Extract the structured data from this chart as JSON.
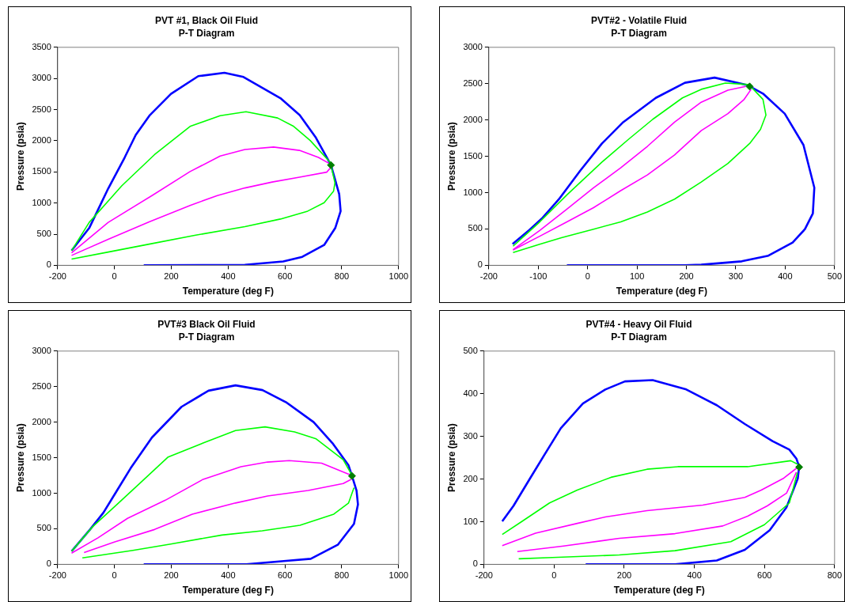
{
  "chart_data": [
    {
      "type": "line",
      "title": "PVT #1, Black Oil Fluid",
      "subtitle": "P-T Diagram",
      "xlabel": "Temperature (deg F)",
      "ylabel": "Pressure (psia)",
      "xlim": [
        -200,
        1000
      ],
      "ylim": [
        0,
        3500
      ],
      "xticks": [
        -200,
        0,
        200,
        400,
        600,
        800,
        1000
      ],
      "yticks": [
        0,
        500,
        1000,
        1500,
        2000,
        2500,
        3000,
        3500
      ],
      "grid": false,
      "legend": false,
      "marker": "none",
      "series": [
        {
          "color": "#0000ff",
          "x": [
            -151,
            -89,
            -22,
            36,
            75,
            123,
            199,
            295,
            387,
            454,
            584,
            652,
            709,
            762,
            791,
            796,
            777,
            738,
            661,
            594,
            459,
            103
          ],
          "values": [
            236,
            598,
            1233,
            1732,
            2094,
            2403,
            2752,
            3037,
            3092,
            3024,
            2684,
            2412,
            2049,
            1609,
            1142,
            870,
            598,
            326,
            136,
            63,
            9,
            0
          ]
        },
        {
          "color": "#00ff00",
          "x": [
            -151,
            -89,
            26,
            141,
            266,
            372,
            463,
            574,
            631,
            689,
            762
          ],
          "values": [
            236,
            689,
            1278,
            1777,
            2230,
            2403,
            2466,
            2366,
            2230,
            2004,
            1641
          ]
        },
        {
          "color": "#ff00ff",
          "x": [
            -151,
            -22,
            132,
            266,
            372,
            459,
            560,
            651,
            718,
            757
          ],
          "values": [
            200,
            689,
            1120,
            1505,
            1754,
            1859,
            1899,
            1845,
            1732,
            1632
          ]
        },
        {
          "color": "#ff00ff",
          "x": [
            762,
            747,
            651,
            555,
            459,
            362,
            266,
            122,
            -22,
            -151
          ],
          "values": [
            1573,
            1496,
            1414,
            1337,
            1242,
            1120,
            961,
            698,
            417,
            159
          ]
        },
        {
          "color": "#00ff00",
          "x": [
            762,
            776,
            771,
            738,
            680,
            584,
            459,
            286,
            122,
            -22,
            -151
          ],
          "values": [
            1609,
            1324,
            1188,
            1006,
            870,
            743,
            621,
            485,
            340,
            213,
            100
          ]
        },
        {
          "type": "scatter",
          "marker": "diamond",
          "color": "#008000",
          "x": [
            762
          ],
          "values": [
            1609
          ]
        }
      ]
    },
    {
      "type": "line",
      "title": "PVT#2 - Volatile Fluid",
      "subtitle": "P-T Diagram",
      "xlabel": "Temperature (deg F)",
      "ylabel": "Pressure (psia)",
      "xlim": [
        -200,
        500
      ],
      "ylim": [
        0,
        3000
      ],
      "xticks": [
        -200,
        -100,
        0,
        100,
        200,
        300,
        400,
        500
      ],
      "yticks": [
        0,
        500,
        1000,
        1500,
        2000,
        2500,
        3000
      ],
      "grid": false,
      "legend": false,
      "marker": "none",
      "series": [
        {
          "color": "#0000ff",
          "x": [
            -152,
            -118,
            -91,
            -58,
            -15,
            29,
            72,
            138,
            197,
            257,
            323,
            355,
            399,
            437,
            459,
            456,
            440,
            415,
            366,
            312,
            230,
            197,
            -42
          ],
          "values": [
            294,
            487,
            655,
            911,
            1303,
            1676,
            1970,
            2304,
            2512,
            2583,
            2481,
            2363,
            2088,
            1656,
            1068,
            714,
            498,
            314,
            133,
            55,
            8,
            0,
            0
          ]
        },
        {
          "color": "#00ff00",
          "x": [
            -151,
            -97,
            -42,
            29,
            83,
            132,
            192,
            230,
            279,
            325
          ],
          "values": [
            263,
            597,
            969,
            1421,
            1735,
            2010,
            2304,
            2422,
            2508,
            2488
          ]
        },
        {
          "color": "#ff00ff",
          "x": [
            -151,
            -97,
            -42,
            12,
            67,
            121,
            176,
            230,
            284,
            320
          ],
          "values": [
            216,
            479,
            773,
            1068,
            1342,
            1637,
            1970,
            2245,
            2410,
            2461
          ]
        },
        {
          "color": "#ff00ff",
          "x": [
            331,
            317,
            284,
            230,
            176,
            121,
            67,
            12,
            -42,
            -97,
            -151
          ],
          "values": [
            2422,
            2284,
            2088,
            1853,
            1519,
            1244,
            1028,
            793,
            597,
            400,
            212
          ]
        },
        {
          "color": "#00ff00",
          "x": [
            333,
            355,
            361,
            350,
            328,
            284,
            230,
            176,
            121,
            67,
            12,
            -53,
            -97,
            -151
          ],
          "values": [
            2441,
            2284,
            2068,
            1872,
            1676,
            1401,
            1146,
            911,
            734,
            597,
            498,
            381,
            290,
            177
          ]
        },
        {
          "type": "scatter",
          "marker": "diamond",
          "color": "#008000",
          "x": [
            328
          ],
          "values": [
            2461
          ]
        }
      ]
    },
    {
      "type": "line",
      "title": "PVT#3 Black Oil Fluid",
      "subtitle": "P-T Diagram",
      "xlabel": "Temperature (deg F)",
      "ylabel": "Pressure (psia)",
      "xlim": [
        -200,
        1000
      ],
      "ylim": [
        0,
        3000
      ],
      "xticks": [
        -200,
        0,
        200,
        400,
        600,
        800,
        1000
      ],
      "yticks": [
        0,
        500,
        1000,
        1500,
        2000,
        2500,
        3000
      ],
      "grid": false,
      "legend": false,
      "marker": "none",
      "series": [
        {
          "color": "#0000ff",
          "x": [
            -151,
            -86,
            -39,
            9,
            57,
            132,
            236,
            331,
            426,
            521,
            606,
            701,
            767,
            824,
            836,
            852,
            857,
            843,
            786,
            691,
            596,
            464,
            103
          ],
          "values": [
            184,
            490,
            726,
            1039,
            1353,
            1785,
            2216,
            2443,
            2518,
            2451,
            2275,
            2000,
            1706,
            1392,
            1243,
            1039,
            843,
            569,
            275,
            78,
            47,
            0,
            0
          ]
        },
        {
          "color": "#00ff00",
          "x": [
            -151,
            -77,
            9,
            94,
            189,
            312,
            426,
            530,
            634,
            710,
            805,
            833
          ],
          "values": [
            184,
            529,
            843,
            1157,
            1510,
            1706,
            1883,
            1934,
            1863,
            1765,
            1471,
            1275
          ]
        },
        {
          "color": "#ff00ff",
          "x": [
            -151,
            -58,
            46,
            179,
            312,
            445,
            539,
            615,
            729,
            828
          ],
          "values": [
            157,
            373,
            647,
            902,
            1196,
            1373,
            1439,
            1459,
            1424,
            1263
          ]
        },
        {
          "color": "#ff00ff",
          "x": [
            833,
            805,
            682,
            539,
            426,
            274,
            141,
            -1,
            -107
          ],
          "values": [
            1196,
            1137,
            1039,
            961,
            863,
            706,
            490,
            314,
            165
          ]
        },
        {
          "color": "#00ff00",
          "x": [
            843,
            824,
            772,
            653,
            520,
            378,
            198,
            65,
            -113
          ],
          "values": [
            1079,
            863,
            706,
            549,
            471,
            412,
            286,
            196,
            90
          ]
        },
        {
          "type": "scatter",
          "marker": "diamond",
          "color": "#008000",
          "x": [
            836
          ],
          "values": [
            1243
          ]
        }
      ]
    },
    {
      "type": "line",
      "title": "PVT#4 - Heavy Oil Fluid",
      "subtitle": "P-T Diagram",
      "xlabel": "Temperature (deg F)",
      "ylabel": "Pressure (psia)",
      "xlim": [
        -200,
        800
      ],
      "ylim": [
        0,
        500
      ],
      "xticks": [
        -200,
        0,
        200,
        400,
        600,
        800
      ],
      "yticks": [
        0,
        100,
        200,
        300,
        400,
        500
      ],
      "grid": false,
      "legend": false,
      "marker": "none",
      "series": [
        {
          "color": "#0000ff",
          "x": [
            -148,
            -116,
            -69,
            -29,
            19,
            82,
            146,
            202,
            281,
            377,
            464,
            544,
            623,
            671,
            691,
            699,
            695,
            663,
            615,
            544,
            464,
            345,
            90
          ],
          "values": [
            101,
            137,
            201,
            255,
            319,
            377,
            410,
            429,
            432,
            410,
            373,
            329,
            289,
            269,
            248,
            229,
            201,
            134,
            80,
            34,
            9,
            0,
            0
          ]
        },
        {
          "color": "#00ff00",
          "x": [
            -148,
            -93,
            -13,
            66,
            162,
            265,
            353,
            552,
            675,
            694
          ],
          "values": [
            70,
            100,
            144,
            174,
            204,
            223,
            229,
            229,
            243,
            235
          ]
        },
        {
          "color": "#ff00ff",
          "x": [
            -148,
            -53,
            66,
            146,
            265,
            424,
            544,
            591,
            655,
            694
          ],
          "values": [
            44,
            73,
            96,
            111,
            126,
            139,
            157,
            174,
            202,
            227
          ]
        },
        {
          "color": "#ff00ff",
          "x": [
            691,
            663,
            608,
            552,
            481,
            345,
            186,
            27,
            -105
          ],
          "values": [
            216,
            167,
            137,
            113,
            90,
            72,
            61,
            43,
            30
          ]
        },
        {
          "color": "#00ff00",
          "x": [
            694,
            671,
            600,
            504,
            345,
            186,
            -5,
            -101
          ],
          "values": [
            215,
            144,
            93,
            53,
            32,
            22,
            16,
            13
          ]
        },
        {
          "type": "scatter",
          "marker": "diamond",
          "color": "#008000",
          "x": [
            699
          ],
          "values": [
            228
          ]
        }
      ]
    }
  ]
}
